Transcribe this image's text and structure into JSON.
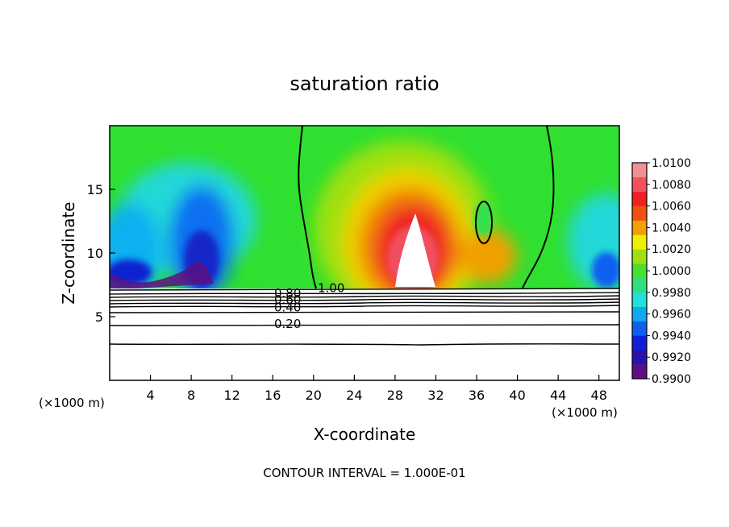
{
  "chart_data": {
    "type": "heatmap",
    "title": "saturation ratio",
    "xlabel": "X-coordinate",
    "ylabel": "Z-coordinate",
    "x_unit_left": "(×1000 m)",
    "x_unit_right": "(×1000 m)",
    "footer": "CONTOUR INTERVAL = 1.000E-01",
    "xlim": [
      0,
      50
    ],
    "ylim": [
      0,
      20
    ],
    "x_ticks": [
      4,
      8,
      12,
      16,
      20,
      24,
      28,
      32,
      36,
      40,
      44,
      48
    ],
    "y_ticks": [
      5,
      10,
      15
    ],
    "colorbar": {
      "range": [
        0.99,
        1.01
      ],
      "levels": [
        "0.9900",
        "0.9920",
        "0.9940",
        "0.9960",
        "0.9980",
        "1.0000",
        "1.0020",
        "1.0040",
        "1.0060",
        "1.0080",
        "1.0100"
      ],
      "colors": [
        "#5a1080",
        "#2c10a8",
        "#1020d8",
        "#1060f0",
        "#10a8f0",
        "#20e0d8",
        "#30e080",
        "#48e030",
        "#a0e010",
        "#f0f000",
        "#f0a000",
        "#f05010",
        "#f02020",
        "#f05060",
        "#f09090"
      ]
    },
    "contours": [
      {
        "label": "0.20",
        "z": 4.5
      },
      {
        "label": "0.40",
        "z": 5.8
      },
      {
        "label": "0.60",
        "z": 6.4
      },
      {
        "label": "0.80",
        "z": 6.9
      },
      {
        "label": "1.00",
        "z": 7.3
      }
    ]
  }
}
